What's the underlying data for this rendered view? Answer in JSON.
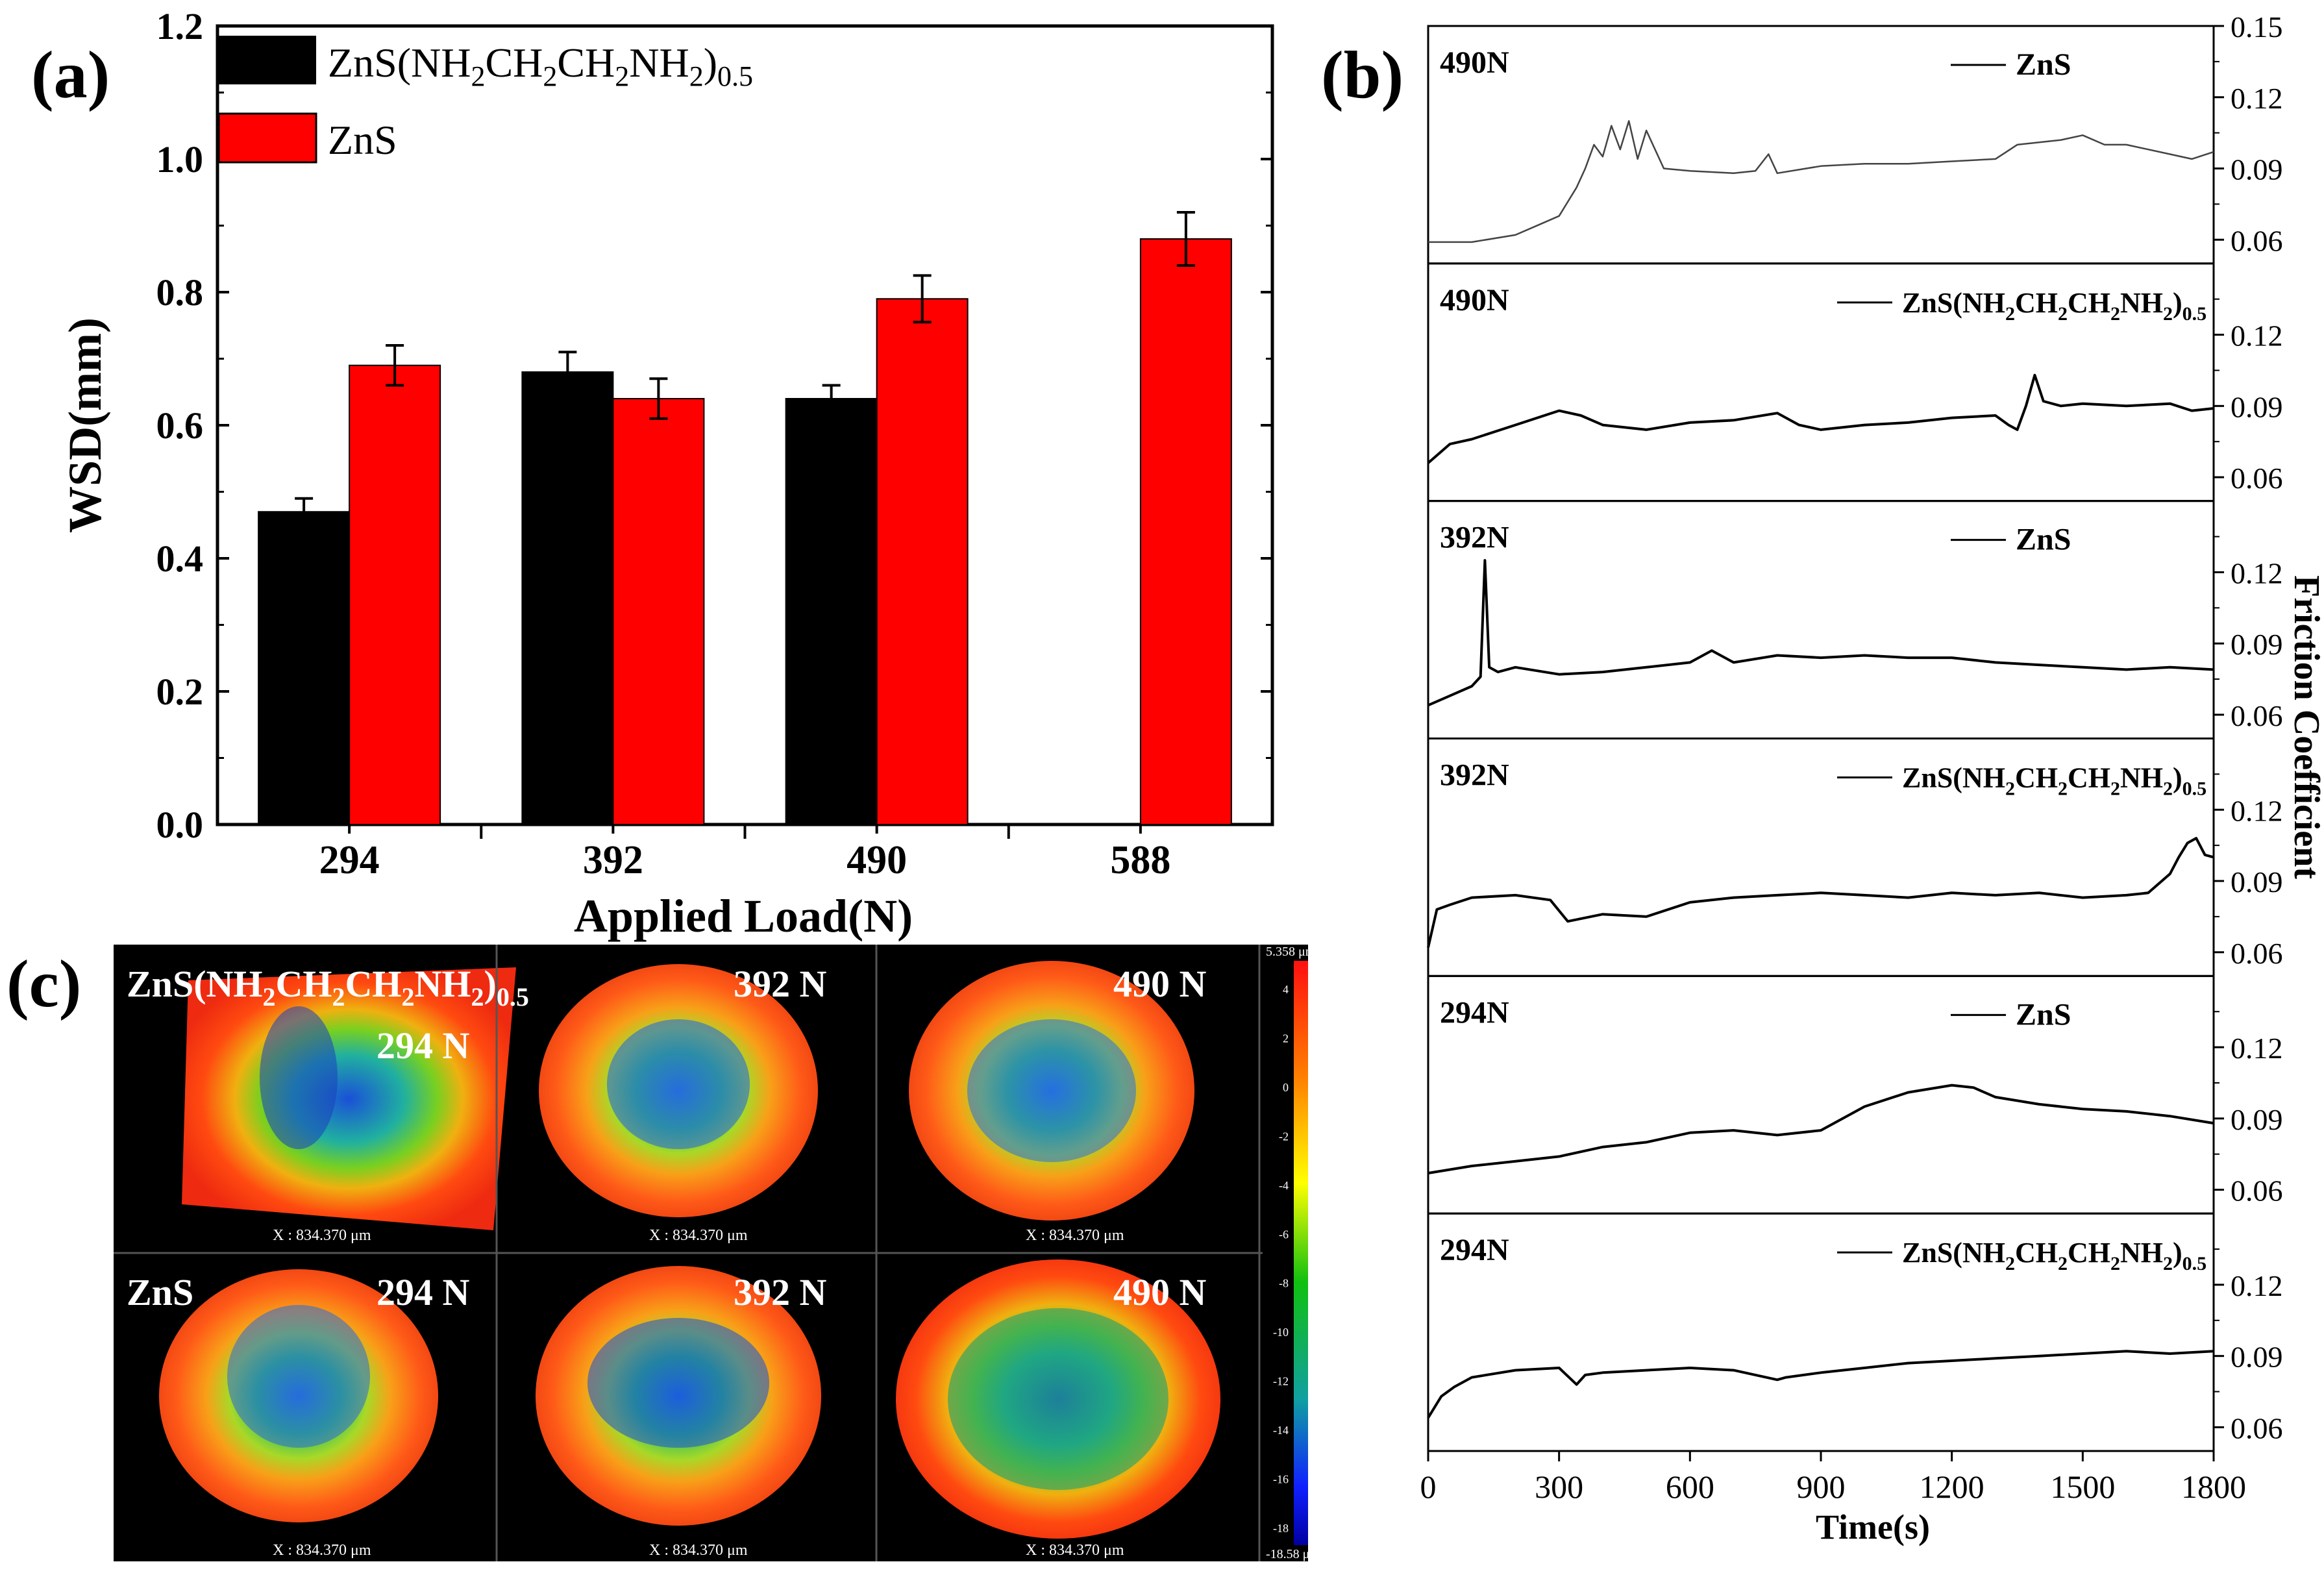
{
  "panel_labels": {
    "a": "(a)",
    "b": "(b)",
    "c": "(c)"
  },
  "colors": {
    "series_a": "#000000",
    "series_b": "#ff0000"
  },
  "chart_data": [
    {
      "id": "a",
      "type": "bar",
      "categories": [
        "294",
        "392",
        "490",
        "588"
      ],
      "series": [
        {
          "name": "ZnS(NH2CH2CH2NH2)0.5",
          "color": "#000000",
          "values": [
            0.47,
            0.68,
            0.64,
            null
          ],
          "errors": [
            0.02,
            0.03,
            0.02,
            null
          ]
        },
        {
          "name": "ZnS",
          "color": "#ff0000",
          "values": [
            0.69,
            0.64,
            0.79,
            0.88
          ],
          "errors": [
            0.03,
            0.03,
            0.035,
            0.04
          ]
        }
      ],
      "ylim": [
        0,
        1.2
      ],
      "yticks": [
        "0.0",
        "0.2",
        "0.4",
        "0.6",
        "0.8",
        "1.0",
        "1.2"
      ],
      "xlabel": "Applied Load(N)",
      "ylabel": "WSD(mm)",
      "legend": {
        "placement": "top-left",
        "items": [
          {
            "base": "ZnS(NH",
            "sub": [
              "2",
              "2",
              "2",
              "2",
              "0.5"
            ],
            "mid": [
              "CH",
              "CH",
              "NH",
              ")"
            ]
          },
          {
            "text": "ZnS"
          }
        ]
      }
    },
    {
      "id": "b",
      "type": "line",
      "xlabel": "Time(s)",
      "ylabel": "Friction Coefficient",
      "xlim": [
        0,
        1800
      ],
      "xticks": [
        "0",
        "300",
        "600",
        "900",
        "1200",
        "1500",
        "1800"
      ],
      "ylim": [
        0.05,
        0.15
      ],
      "yticks_top": [
        "0.06",
        "0.09",
        "0.12",
        "0.15"
      ],
      "yticks": [
        "0.06",
        "0.09",
        "0.12"
      ],
      "panels": [
        {
          "load": "490N",
          "legend": "ZnS",
          "color": "#444444",
          "t": [
            0,
            100,
            200,
            250,
            300,
            340,
            360,
            380,
            400,
            420,
            440,
            460,
            480,
            500,
            540,
            600,
            700,
            750,
            780,
            800,
            900,
            1000,
            1100,
            1200,
            1300,
            1350,
            1400,
            1450,
            1500,
            1550,
            1600,
            1700,
            1750,
            1800
          ],
          "mu": [
            0.059,
            0.059,
            0.062,
            0.066,
            0.07,
            0.082,
            0.09,
            0.1,
            0.095,
            0.108,
            0.098,
            0.11,
            0.094,
            0.106,
            0.09,
            0.089,
            0.088,
            0.089,
            0.096,
            0.088,
            0.091,
            0.092,
            0.092,
            0.093,
            0.094,
            0.1,
            0.101,
            0.102,
            0.104,
            0.1,
            0.1,
            0.096,
            0.094,
            0.097
          ]
        },
        {
          "load": "490N",
          "legend": "ZnS(NH2CH2CH2NH2)0.5",
          "color": "#000000",
          "t": [
            0,
            50,
            100,
            200,
            300,
            350,
            400,
            500,
            600,
            700,
            800,
            850,
            900,
            1000,
            1100,
            1200,
            1300,
            1330,
            1350,
            1370,
            1390,
            1410,
            1450,
            1500,
            1600,
            1700,
            1750,
            1800
          ],
          "mu": [
            0.066,
            0.074,
            0.076,
            0.082,
            0.088,
            0.086,
            0.082,
            0.08,
            0.083,
            0.084,
            0.087,
            0.082,
            0.08,
            0.082,
            0.083,
            0.085,
            0.086,
            0.082,
            0.08,
            0.09,
            0.103,
            0.092,
            0.09,
            0.091,
            0.09,
            0.091,
            0.088,
            0.089
          ]
        },
        {
          "load": "392N",
          "legend": "ZnS",
          "color": "#000000",
          "t": [
            0,
            50,
            100,
            120,
            130,
            140,
            160,
            200,
            300,
            400,
            500,
            600,
            650,
            700,
            800,
            900,
            1000,
            1100,
            1200,
            1300,
            1400,
            1500,
            1600,
            1700,
            1800
          ],
          "mu": [
            0.064,
            0.068,
            0.072,
            0.076,
            0.125,
            0.08,
            0.078,
            0.08,
            0.077,
            0.078,
            0.08,
            0.082,
            0.087,
            0.082,
            0.085,
            0.084,
            0.085,
            0.084,
            0.084,
            0.082,
            0.081,
            0.08,
            0.079,
            0.08,
            0.079
          ]
        },
        {
          "load": "392N",
          "legend": "ZnS(NH2CH2CH2NH2)0.5",
          "color": "#000000",
          "t": [
            0,
            20,
            50,
            100,
            200,
            280,
            320,
            400,
            500,
            600,
            700,
            800,
            900,
            1000,
            1100,
            1200,
            1300,
            1400,
            1500,
            1600,
            1650,
            1700,
            1720,
            1740,
            1760,
            1780,
            1800
          ],
          "mu": [
            0.062,
            0.078,
            0.08,
            0.083,
            0.084,
            0.082,
            0.073,
            0.076,
            0.075,
            0.081,
            0.083,
            0.084,
            0.085,
            0.084,
            0.083,
            0.085,
            0.084,
            0.085,
            0.083,
            0.084,
            0.085,
            0.093,
            0.1,
            0.106,
            0.108,
            0.101,
            0.1
          ]
        },
        {
          "load": "294N",
          "legend": "ZnS",
          "color": "#000000",
          "t": [
            0,
            100,
            200,
            300,
            400,
            500,
            600,
            700,
            800,
            900,
            1000,
            1100,
            1200,
            1250,
            1300,
            1400,
            1500,
            1600,
            1700,
            1800
          ],
          "mu": [
            0.067,
            0.07,
            0.072,
            0.074,
            0.078,
            0.08,
            0.084,
            0.085,
            0.083,
            0.085,
            0.095,
            0.101,
            0.104,
            0.103,
            0.099,
            0.096,
            0.094,
            0.093,
            0.091,
            0.088
          ]
        },
        {
          "load": "294N",
          "legend": "ZnS(NH2CH2CH2NH2)0.5",
          "color": "#000000",
          "t": [
            0,
            30,
            60,
            100,
            200,
            300,
            340,
            360,
            400,
            500,
            600,
            700,
            800,
            820,
            900,
            1000,
            1100,
            1200,
            1300,
            1400,
            1500,
            1600,
            1700,
            1800
          ],
          "mu": [
            0.064,
            0.073,
            0.077,
            0.081,
            0.084,
            0.085,
            0.078,
            0.082,
            0.083,
            0.084,
            0.085,
            0.084,
            0.08,
            0.081,
            0.083,
            0.085,
            0.087,
            0.088,
            0.089,
            0.09,
            0.091,
            0.092,
            0.091,
            0.092
          ]
        }
      ]
    }
  ],
  "panel_c": {
    "row_labels": [
      "ZnS(NH2CH2CH2NH2)0.5",
      "ZnS"
    ],
    "formula_label": {
      "parts": [
        "ZnS(NH",
        "2",
        "CH",
        "2",
        "CH",
        "2",
        "NH",
        "2",
        ")",
        "0.5"
      ]
    },
    "loads": [
      "294 N",
      "392 N",
      "490 N"
    ],
    "x_scale": "X : 834.370 μm",
    "colorbar_max": "5.358 μm",
    "colorbar_min": "-18.58 μm",
    "colorbar_ticks": [
      "4",
      "2",
      "0",
      "-2",
      "-4",
      "-6",
      "-8",
      "-10",
      "-12",
      "-14",
      "-16",
      "-18"
    ]
  }
}
